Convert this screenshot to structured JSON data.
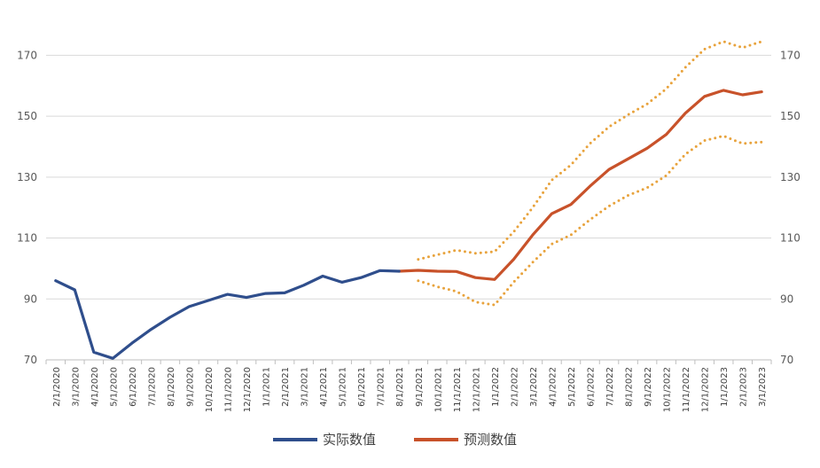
{
  "chart_data": {
    "type": "line",
    "title": "",
    "xlabel": "",
    "ylabel": "",
    "ylim": [
      70,
      180
    ],
    "yticks": [
      70,
      90,
      110,
      130,
      150,
      170
    ],
    "y_axes": "left and right (same scale)",
    "grid": "horizontal",
    "legend_position": "bottom-center",
    "categories": [
      "2/1/2020",
      "3/1/2020",
      "4/1/2020",
      "5/1/2020",
      "6/1/2020",
      "7/1/2020",
      "8/1/2020",
      "9/1/2020",
      "10/1/2020",
      "11/1/2020",
      "12/1/2020",
      "1/1/2021",
      "2/1/2021",
      "3/1/2021",
      "4/1/2021",
      "5/1/2021",
      "6/1/2021",
      "7/1/2021",
      "8/1/2021",
      "9/1/2021",
      "10/1/2021",
      "11/1/2021",
      "12/1/2021",
      "1/1/2022",
      "2/1/2022",
      "3/1/2022",
      "4/1/2022",
      "5/1/2022",
      "6/1/2022",
      "7/1/2022",
      "8/1/2022",
      "9/1/2022",
      "10/1/2022",
      "11/1/2022",
      "12/1/2022",
      "1/1/2023",
      "2/1/2023",
      "3/1/2023"
    ],
    "series": [
      {
        "name": "实际数值",
        "color": "#2f4e8c",
        "style": "solid",
        "values": [
          96,
          93,
          72.5,
          70.5,
          75.5,
          80,
          84,
          87.5,
          89.5,
          91.5,
          90.5,
          91.8,
          92,
          94.5,
          97.5,
          95.5,
          97,
          99.3,
          99.1,
          null,
          null,
          null,
          null,
          null,
          null,
          null,
          null,
          null,
          null,
          null,
          null,
          null,
          null,
          null,
          null,
          null,
          null,
          null
        ]
      },
      {
        "name": "预测数值",
        "color": "#c8522a",
        "style": "solid",
        "values": [
          null,
          null,
          null,
          null,
          null,
          null,
          null,
          null,
          null,
          null,
          null,
          null,
          null,
          null,
          null,
          null,
          null,
          null,
          99.1,
          99.4,
          99.1,
          99,
          97,
          96.4,
          103,
          111,
          118,
          121,
          127,
          132.5,
          136,
          139.5,
          144,
          151,
          156.5,
          158.5,
          157,
          158
        ]
      },
      {
        "color": "#e8a33d",
        "style": "dotted",
        "values": [
          null,
          null,
          null,
          null,
          null,
          null,
          null,
          null,
          null,
          null,
          null,
          null,
          null,
          null,
          null,
          null,
          null,
          null,
          null,
          103,
          104.5,
          106,
          105,
          105.5,
          112,
          120,
          129,
          134,
          141,
          146.5,
          150.5,
          154,
          159,
          166,
          172,
          174.5,
          172.5,
          174.5
        ]
      },
      {
        "color": "#e8a33d",
        "style": "dotted",
        "values": [
          null,
          null,
          null,
          null,
          null,
          null,
          null,
          null,
          null,
          null,
          null,
          null,
          null,
          null,
          null,
          null,
          null,
          null,
          null,
          96,
          94,
          92.5,
          89,
          88,
          95.5,
          102,
          108,
          111,
          116,
          120.5,
          124,
          126.5,
          130.5,
          137.5,
          142,
          143.5,
          141,
          141.5
        ]
      }
    ]
  }
}
